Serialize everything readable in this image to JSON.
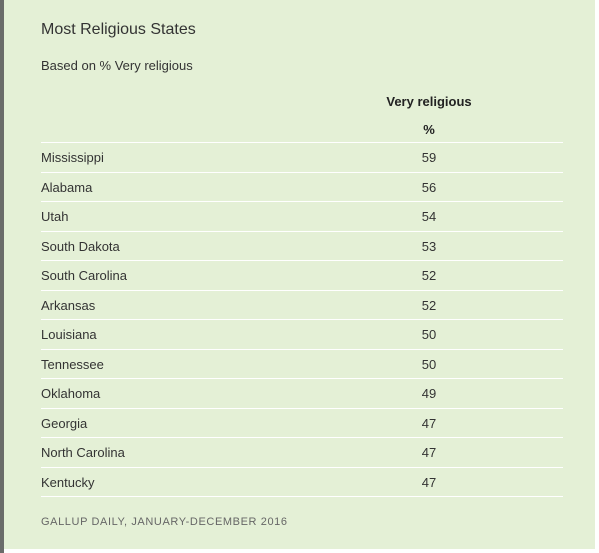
{
  "chart_data": {
    "type": "table",
    "title": "Most Religious States",
    "subtitle": "Based on % Very religious",
    "column_header": "Very religious",
    "column_unit": "%",
    "categories": [
      "Mississippi",
      "Alabama",
      "Utah",
      "South Dakota",
      "South Carolina",
      "Arkansas",
      "Louisiana",
      "Tennessee",
      "Oklahoma",
      "Georgia",
      "North Carolina",
      "Kentucky"
    ],
    "values": [
      59,
      56,
      54,
      53,
      52,
      52,
      50,
      50,
      49,
      47,
      47,
      47
    ],
    "source": "GALLUP DAILY, JANUARY-DECEMBER 2016"
  },
  "colors": {
    "panel_background": "#e4f0d6",
    "row_divider": "#ffffff",
    "text": "#333333"
  }
}
